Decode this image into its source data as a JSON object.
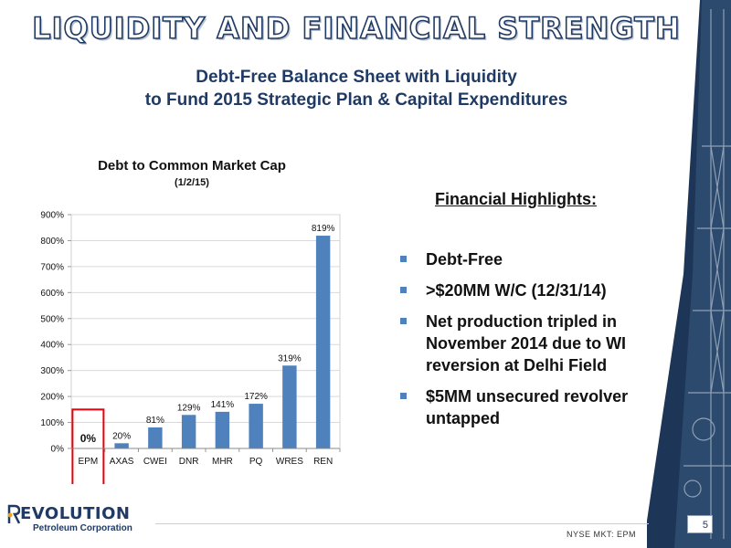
{
  "slide": {
    "title": "LIQUIDITY AND FINANCIAL STRENGTH",
    "subtitle_line1": "Debt-Free Balance Sheet with Liquidity",
    "subtitle_line2": "to Fund 2015 Strategic Plan & Capital Expenditures"
  },
  "highlights": {
    "title": "Financial Highlights:",
    "items": [
      "Debt-Free",
      ">$20MM W/C (12/31/14)",
      "Net production tripled in November 2014 due to WI reversion at Delhi Field",
      "$5MM unsecured revolver untapped"
    ]
  },
  "footer": {
    "logo_main": "EVOLUTION",
    "logo_sub": "Petroleum Corporation",
    "ticker": "NYSE MKT: EPM",
    "page_number": "5"
  },
  "colors": {
    "bar": "#4f81bd",
    "highlight_box": "#e8000b",
    "title_dark": "#1f3a64",
    "sidebar_dark": "#1d3557"
  },
  "chart_data": {
    "type": "bar",
    "title": "Debt to Common Market Cap",
    "subtitle": "(1/2/15)",
    "categories": [
      "EPM",
      "AXAS",
      "CWEI",
      "DNR",
      "MHR",
      "PQ",
      "WRES",
      "REN"
    ],
    "values": [
      0,
      20,
      81,
      129,
      141,
      172,
      319,
      819
    ],
    "data_labels": [
      "0%",
      "20%",
      "81%",
      "129%",
      "141%",
      "172%",
      "319%",
      "819%"
    ],
    "ylim": [
      0,
      900
    ],
    "yticks": [
      "0%",
      "100%",
      "200%",
      "300%",
      "400%",
      "500%",
      "600%",
      "700%",
      "800%",
      "900%"
    ],
    "grid": true,
    "highlighted_category": "EPM"
  }
}
